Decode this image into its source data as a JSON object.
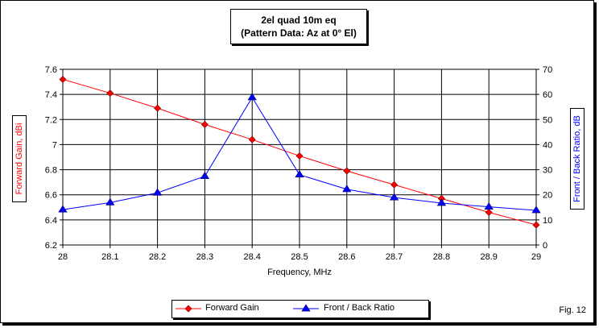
{
  "chart_data": {
    "type": "line",
    "title": "2el quad 10m eq",
    "subtitle": "(Pattern Data: Az at 0° El)",
    "xlabel": "Frequency, MHz",
    "ylabel_left": "Forward Gain, dBi",
    "ylabel_right": "Front / Back Ratio, dB",
    "x": [
      28,
      28.1,
      28.2,
      28.3,
      28.4,
      28.5,
      28.6,
      28.7,
      28.8,
      28.9,
      29
    ],
    "x_ticks": [
      "28",
      "28.1",
      "28.2",
      "28.3",
      "28.4",
      "28.5",
      "28.6",
      "28.7",
      "28.8",
      "28.9",
      "29"
    ],
    "xlim": [
      28,
      29
    ],
    "ylim_left": [
      6.2,
      7.6
    ],
    "y_ticks_left": [
      "7.6",
      "7.4",
      "7.2",
      "7",
      "6.8",
      "6.6",
      "6.4",
      "6.2"
    ],
    "ylim_right": [
      0,
      70
    ],
    "y_ticks_right": [
      "70",
      "60",
      "50",
      "40",
      "30",
      "20",
      "10",
      "0"
    ],
    "grid": true,
    "legend_position": "bottom",
    "series": [
      {
        "name": "Forward Gain",
        "axis": "left",
        "color": "#ff0000",
        "marker": "diamond",
        "values": [
          7.52,
          7.41,
          7.29,
          7.16,
          7.04,
          6.91,
          6.79,
          6.68,
          6.57,
          6.46,
          6.36
        ]
      },
      {
        "name": "Front / Back Ratio",
        "axis": "right",
        "color": "#0000ff",
        "marker": "triangle",
        "values": [
          14.1,
          16.9,
          20.8,
          27.4,
          58.8,
          28.0,
          22.2,
          18.9,
          16.7,
          15.2,
          13.8
        ]
      }
    ]
  },
  "figure_label": "Fig. 12"
}
